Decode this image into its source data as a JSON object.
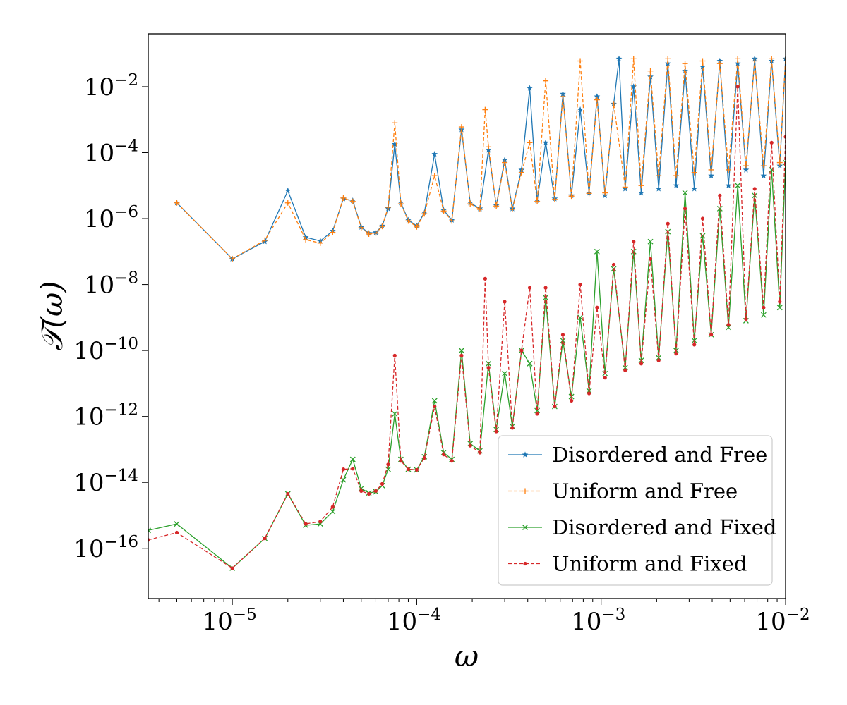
{
  "chart_data": {
    "type": "line",
    "xscale": "log",
    "yscale": "log",
    "xlabel": "ω",
    "ylabel": "𝒯(ω)",
    "xlim": [
      3.5e-06,
      0.01
    ],
    "ylim": [
      3e-18,
      0.4
    ],
    "xticks": [
      {
        "value": 1e-05,
        "base": "10",
        "exp": "−5"
      },
      {
        "value": 0.0001,
        "base": "10",
        "exp": "−4"
      },
      {
        "value": 0.001,
        "base": "10",
        "exp": "−3"
      },
      {
        "value": 0.01,
        "base": "10",
        "exp": "−2"
      }
    ],
    "yticks": [
      {
        "value": 0.01,
        "base": "10",
        "exp": "−2"
      },
      {
        "value": 0.0001,
        "base": "10",
        "exp": "−4"
      },
      {
        "value": 1e-06,
        "base": "10",
        "exp": "−6"
      },
      {
        "value": 1e-08,
        "base": "10",
        "exp": "−8"
      },
      {
        "value": 1e-10,
        "base": "10",
        "exp": "−10"
      },
      {
        "value": 1e-12,
        "base": "10",
        "exp": "−12"
      },
      {
        "value": 1e-14,
        "base": "10",
        "exp": "−14"
      },
      {
        "value": 1e-16,
        "base": "10",
        "exp": "−16"
      }
    ],
    "grid": false,
    "legend_position": "lower-right",
    "series": [
      {
        "name": "Disordered and Free",
        "color": "#1f77b4",
        "linestyle": "solid",
        "marker": "star",
        "points": [
          [
            5e-06,
            3e-06
          ],
          [
            1e-05,
            6e-08
          ],
          [
            1.5e-05,
            2e-07
          ],
          [
            2e-05,
            7e-06
          ],
          [
            2.5e-05,
            2.7e-07
          ],
          [
            3e-05,
            2.1e-07
          ],
          [
            3.5e-05,
            4.2e-07
          ],
          [
            4e-05,
            4e-06
          ],
          [
            4.5e-05,
            3.5e-06
          ],
          [
            5e-05,
            5.5e-07
          ],
          [
            5.5e-05,
            3.6e-07
          ],
          [
            6e-05,
            3.8e-07
          ],
          [
            6.5e-05,
            6e-07
          ],
          [
            7e-05,
            2e-06
          ],
          [
            7.6e-05,
            0.00018
          ],
          [
            8.2e-05,
            3e-06
          ],
          [
            9e-05,
            9e-07
          ],
          [
            0.0001,
            6e-07
          ],
          [
            0.00011,
            1.5e-06
          ],
          [
            0.000125,
            9e-05
          ],
          [
            0.00014,
            1.8e-06
          ],
          [
            0.000155,
            9e-07
          ],
          [
            0.000175,
            0.0005
          ],
          [
            0.000195,
            3e-06
          ],
          [
            0.00022,
            2e-06
          ],
          [
            0.000245,
            0.00012
          ],
          [
            0.00027,
            2.5e-06
          ],
          [
            0.0003,
            6e-05
          ],
          [
            0.00033,
            2e-06
          ],
          [
            0.00037,
            3e-05
          ],
          [
            0.00041,
            0.009
          ],
          [
            0.00045,
            3.5e-06
          ],
          [
            0.0005,
            0.0002
          ],
          [
            0.00056,
            4e-06
          ],
          [
            0.00062,
            0.006
          ],
          [
            0.00069,
            5e-06
          ],
          [
            0.00077,
            0.002
          ],
          [
            0.00086,
            6e-06
          ],
          [
            0.00095,
            0.005
          ],
          [
            0.00105,
            5e-06
          ],
          [
            0.00117,
            0.003
          ],
          [
            0.00125,
            0.07
          ],
          [
            0.00135,
            8e-06
          ],
          [
            0.0015,
            0.01
          ],
          [
            0.00165,
            6e-06
          ],
          [
            0.00185,
            0.02
          ],
          [
            0.00205,
            8e-06
          ],
          [
            0.0023,
            0.05
          ],
          [
            0.00255,
            1e-05
          ],
          [
            0.00285,
            0.03
          ],
          [
            0.0032,
            8e-06
          ],
          [
            0.00355,
            0.04
          ],
          [
            0.00395,
            2e-05
          ],
          [
            0.0044,
            0.06
          ],
          [
            0.0049,
            1e-05
          ],
          [
            0.0055,
            0.05
          ],
          [
            0.0061,
            3e-05
          ],
          [
            0.0068,
            0.07
          ],
          [
            0.0076,
            2e-05
          ],
          [
            0.0084,
            0.06
          ],
          [
            0.0093,
            4e-05
          ],
          [
            0.01,
            0.07
          ]
        ]
      },
      {
        "name": "Uniform and Free",
        "color": "#ff7f0e",
        "linestyle": "dashed",
        "marker": "plus",
        "points": [
          [
            5e-06,
            3e-06
          ],
          [
            1e-05,
            6e-08
          ],
          [
            1.5e-05,
            2.2e-07
          ],
          [
            2e-05,
            3e-06
          ],
          [
            2.5e-05,
            2.3e-07
          ],
          [
            3e-05,
            1.8e-07
          ],
          [
            3.5e-05,
            3.8e-07
          ],
          [
            4e-05,
            4.2e-06
          ],
          [
            4.5e-05,
            3.3e-06
          ],
          [
            5e-05,
            5.3e-07
          ],
          [
            5.5e-05,
            3.4e-07
          ],
          [
            6e-05,
            3.6e-07
          ],
          [
            6.5e-05,
            5.8e-07
          ],
          [
            7e-05,
            2.2e-06
          ],
          [
            7.6e-05,
            0.0008
          ],
          [
            8.2e-05,
            2.8e-06
          ],
          [
            9e-05,
            8.5e-07
          ],
          [
            0.0001,
            5.6e-07
          ],
          [
            0.00011,
            1.4e-06
          ],
          [
            0.000125,
            2e-05
          ],
          [
            0.00014,
            1.7e-06
          ],
          [
            0.000155,
            8.5e-07
          ],
          [
            0.000175,
            0.0006
          ],
          [
            0.000195,
            2.8e-06
          ],
          [
            0.00022,
            1.9e-06
          ],
          [
            0.000235,
            0.002
          ],
          [
            0.000245,
            0.00015
          ],
          [
            0.00027,
            2.4e-06
          ],
          [
            0.0003,
            5e-05
          ],
          [
            0.00033,
            1.9e-06
          ],
          [
            0.00037,
            2.5e-05
          ],
          [
            0.00041,
            0.0002
          ],
          [
            0.00045,
            3.3e-06
          ],
          [
            0.0005,
            0.015
          ],
          [
            0.00056,
            3.8e-06
          ],
          [
            0.00062,
            0.005
          ],
          [
            0.00069,
            4.8e-06
          ],
          [
            0.00077,
            0.06
          ],
          [
            0.00086,
            5.8e-06
          ],
          [
            0.00095,
            0.004
          ],
          [
            0.00105,
            6e-06
          ],
          [
            0.00117,
            0.003
          ],
          [
            0.00135,
            9e-06
          ],
          [
            0.0015,
            0.07
          ],
          [
            0.00165,
            1e-05
          ],
          [
            0.00185,
            0.03
          ],
          [
            0.00205,
            2e-05
          ],
          [
            0.0023,
            0.07
          ],
          [
            0.00255,
            2e-05
          ],
          [
            0.00285,
            0.05
          ],
          [
            0.0032,
            2.5e-05
          ],
          [
            0.00355,
            0.06
          ],
          [
            0.00395,
            3e-05
          ],
          [
            0.0044,
            0.05
          ],
          [
            0.0049,
            3e-05
          ],
          [
            0.0055,
            0.07
          ],
          [
            0.0061,
            4e-05
          ],
          [
            0.0068,
            0.06
          ],
          [
            0.0076,
            4e-05
          ],
          [
            0.0084,
            0.07
          ],
          [
            0.0093,
            5e-05
          ],
          [
            0.01,
            0.07
          ]
        ]
      },
      {
        "name": "Disordered and Fixed",
        "color": "#2ca02c",
        "linestyle": "solid",
        "marker": "x",
        "points": [
          [
            3.5e-06,
            3.5e-16
          ],
          [
            5e-06,
            5.5e-16
          ],
          [
            1e-05,
            2.5e-17
          ],
          [
            1.5e-05,
            2e-16
          ],
          [
            2e-05,
            4.5e-15
          ],
          [
            2.5e-05,
            5e-16
          ],
          [
            3e-05,
            5.5e-16
          ],
          [
            3.5e-05,
            1.3e-15
          ],
          [
            4e-05,
            1.2e-14
          ],
          [
            4.5e-05,
            5e-14
          ],
          [
            5e-05,
            6.5e-15
          ],
          [
            5.5e-05,
            4.8e-15
          ],
          [
            6e-05,
            5.2e-15
          ],
          [
            6.5e-05,
            8e-15
          ],
          [
            7e-05,
            2.5e-14
          ],
          [
            7.6e-05,
            1.2e-12
          ],
          [
            8.2e-05,
            5e-14
          ],
          [
            9e-05,
            2.5e-14
          ],
          [
            0.0001,
            2.4e-14
          ],
          [
            0.00011,
            6e-14
          ],
          [
            0.000125,
            3e-12
          ],
          [
            0.00014,
            8e-14
          ],
          [
            0.000155,
            5e-14
          ],
          [
            0.000175,
            1e-10
          ],
          [
            0.000195,
            1.5e-13
          ],
          [
            0.00022,
            9e-14
          ],
          [
            0.000245,
            4e-11
          ],
          [
            0.00027,
            4e-13
          ],
          [
            0.0003,
            2e-11
          ],
          [
            0.00033,
            5e-13
          ],
          [
            0.00037,
            1e-10
          ],
          [
            0.00041,
            4e-11
          ],
          [
            0.00045,
            1.5e-12
          ],
          [
            0.0005,
            4e-09
          ],
          [
            0.00056,
            2e-12
          ],
          [
            0.00062,
            2e-10
          ],
          [
            0.00069,
            4e-12
          ],
          [
            0.00077,
            1e-09
          ],
          [
            0.00086,
            6e-12
          ],
          [
            0.00095,
            1e-07
          ],
          [
            0.00105,
            2e-11
          ],
          [
            0.00117,
            3e-08
          ],
          [
            0.00135,
            3e-11
          ],
          [
            0.0015,
            1e-07
          ],
          [
            0.00165,
            5e-11
          ],
          [
            0.00185,
            2e-07
          ],
          [
            0.00205,
            6e-11
          ],
          [
            0.0023,
            4e-07
          ],
          [
            0.00255,
            1e-10
          ],
          [
            0.00285,
            6e-06
          ],
          [
            0.0032,
            2e-10
          ],
          [
            0.00355,
            3e-07
          ],
          [
            0.00395,
            3e-10
          ],
          [
            0.0044,
            2e-06
          ],
          [
            0.0049,
            5e-10
          ],
          [
            0.0055,
            1e-05
          ],
          [
            0.0061,
            8e-10
          ],
          [
            0.0068,
            5e-06
          ],
          [
            0.0076,
            1.2e-09
          ],
          [
            0.0084,
            3e-05
          ],
          [
            0.0093,
            2e-09
          ],
          [
            0.01,
            5e-05
          ]
        ]
      },
      {
        "name": "Uniform and Fixed",
        "color": "#d62728",
        "linestyle": "dashed",
        "marker": "dot",
        "points": [
          [
            3.5e-06,
            1.8e-16
          ],
          [
            5e-06,
            3e-16
          ],
          [
            1e-05,
            2.5e-17
          ],
          [
            1.5e-05,
            2e-16
          ],
          [
            2e-05,
            4.5e-15
          ],
          [
            2.5e-05,
            5.5e-16
          ],
          [
            3e-05,
            6.5e-16
          ],
          [
            3.5e-05,
            1.8e-15
          ],
          [
            4e-05,
            2.5e-14
          ],
          [
            4.5e-05,
            2.6e-14
          ],
          [
            5e-05,
            5.5e-15
          ],
          [
            5.5e-05,
            4.5e-15
          ],
          [
            6e-05,
            5.5e-15
          ],
          [
            6.5e-05,
            9e-15
          ],
          [
            7e-05,
            3.5e-14
          ],
          [
            7.6e-05,
            7e-11
          ],
          [
            8.2e-05,
            4.5e-14
          ],
          [
            9e-05,
            2.5e-14
          ],
          [
            0.0001,
            2.4e-14
          ],
          [
            0.00011,
            5.5e-14
          ],
          [
            0.000125,
            2e-12
          ],
          [
            0.00014,
            7e-14
          ],
          [
            0.000155,
            4.5e-14
          ],
          [
            0.000175,
            7e-11
          ],
          [
            0.000195,
            1.3e-13
          ],
          [
            0.00022,
            8e-14
          ],
          [
            0.000235,
            1.5e-08
          ],
          [
            0.000245,
            3e-11
          ],
          [
            0.00027,
            3.5e-13
          ],
          [
            0.0003,
            3e-09
          ],
          [
            0.00033,
            4.5e-13
          ],
          [
            0.00037,
            1e-10
          ],
          [
            0.00041,
            8e-09
          ],
          [
            0.00045,
            1.2e-12
          ],
          [
            0.0005,
            8e-09
          ],
          [
            0.00056,
            2e-12
          ],
          [
            0.00062,
            3e-10
          ],
          [
            0.00069,
            3e-12
          ],
          [
            0.00077,
            1e-08
          ],
          [
            0.00086,
            5e-12
          ],
          [
            0.00095,
            2e-09
          ],
          [
            0.00105,
            1.5e-11
          ],
          [
            0.00117,
            4e-08
          ],
          [
            0.00135,
            2.5e-11
          ],
          [
            0.0015,
            2e-07
          ],
          [
            0.00165,
            4e-11
          ],
          [
            0.00185,
            6e-08
          ],
          [
            0.00205,
            5e-11
          ],
          [
            0.0023,
            7e-07
          ],
          [
            0.00255,
            8e-11
          ],
          [
            0.00285,
            2e-06
          ],
          [
            0.0032,
            1.5e-10
          ],
          [
            0.00355,
            1e-06
          ],
          [
            0.00395,
            3e-10
          ],
          [
            0.0044,
            5e-06
          ],
          [
            0.0049,
            6e-10
          ],
          [
            0.0055,
            0.01
          ],
          [
            0.0061,
            9e-10
          ],
          [
            0.0068,
            8e-06
          ],
          [
            0.0076,
            2e-09
          ],
          [
            0.0084,
            0.0002
          ],
          [
            0.0093,
            3e-09
          ],
          [
            0.01,
            0.0003
          ]
        ]
      }
    ]
  }
}
